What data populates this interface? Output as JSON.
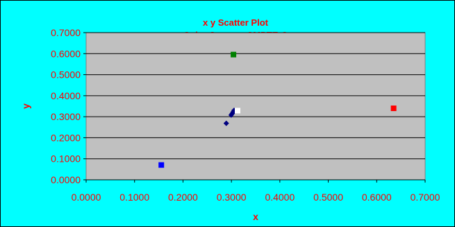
{
  "chart_data": {
    "type": "scatter",
    "title": "x y Scatter Plot",
    "subtitle": "Color System: SMPTE-C",
    "xlabel": "x",
    "ylabel": "y",
    "xlim": [
      0,
      0.7
    ],
    "ylim": [
      0,
      0.7
    ],
    "xticks": [
      "0.0000",
      "0.1000",
      "0.2000",
      "0.3000",
      "0.4000",
      "0.5000",
      "0.6000",
      "0.7000"
    ],
    "yticks": [
      "0.0000",
      "0.1000",
      "0.2000",
      "0.3000",
      "0.4000",
      "0.5000",
      "0.6000",
      "0.7000"
    ],
    "grid": true,
    "colors": {
      "background": "#00ffff",
      "plot_area": "#c0c0c0",
      "text": "#ff0000"
    },
    "series": [
      {
        "marker": "diamond",
        "color": "#000080",
        "points": [
          [
            0.2894,
            0.2686
          ],
          [
            0.2995,
            0.3077
          ],
          [
            0.3016,
            0.3149
          ],
          [
            0.3036,
            0.3224
          ],
          [
            0.3055,
            0.33
          ]
        ]
      },
      {
        "marker": "square",
        "color": "#ff0000",
        "points": [
          [
            0.6349,
            0.34
          ]
        ]
      },
      {
        "marker": "square",
        "color": "#008000",
        "points": [
          [
            0.3042,
            0.5956
          ]
        ]
      },
      {
        "marker": "square",
        "color": "#0000ff",
        "points": [
          [
            0.1552,
            0.0704
          ]
        ]
      },
      {
        "marker": "square",
        "color": "#ffffff",
        "points": [
          [
            0.3127,
            0.329
          ]
        ]
      }
    ]
  }
}
